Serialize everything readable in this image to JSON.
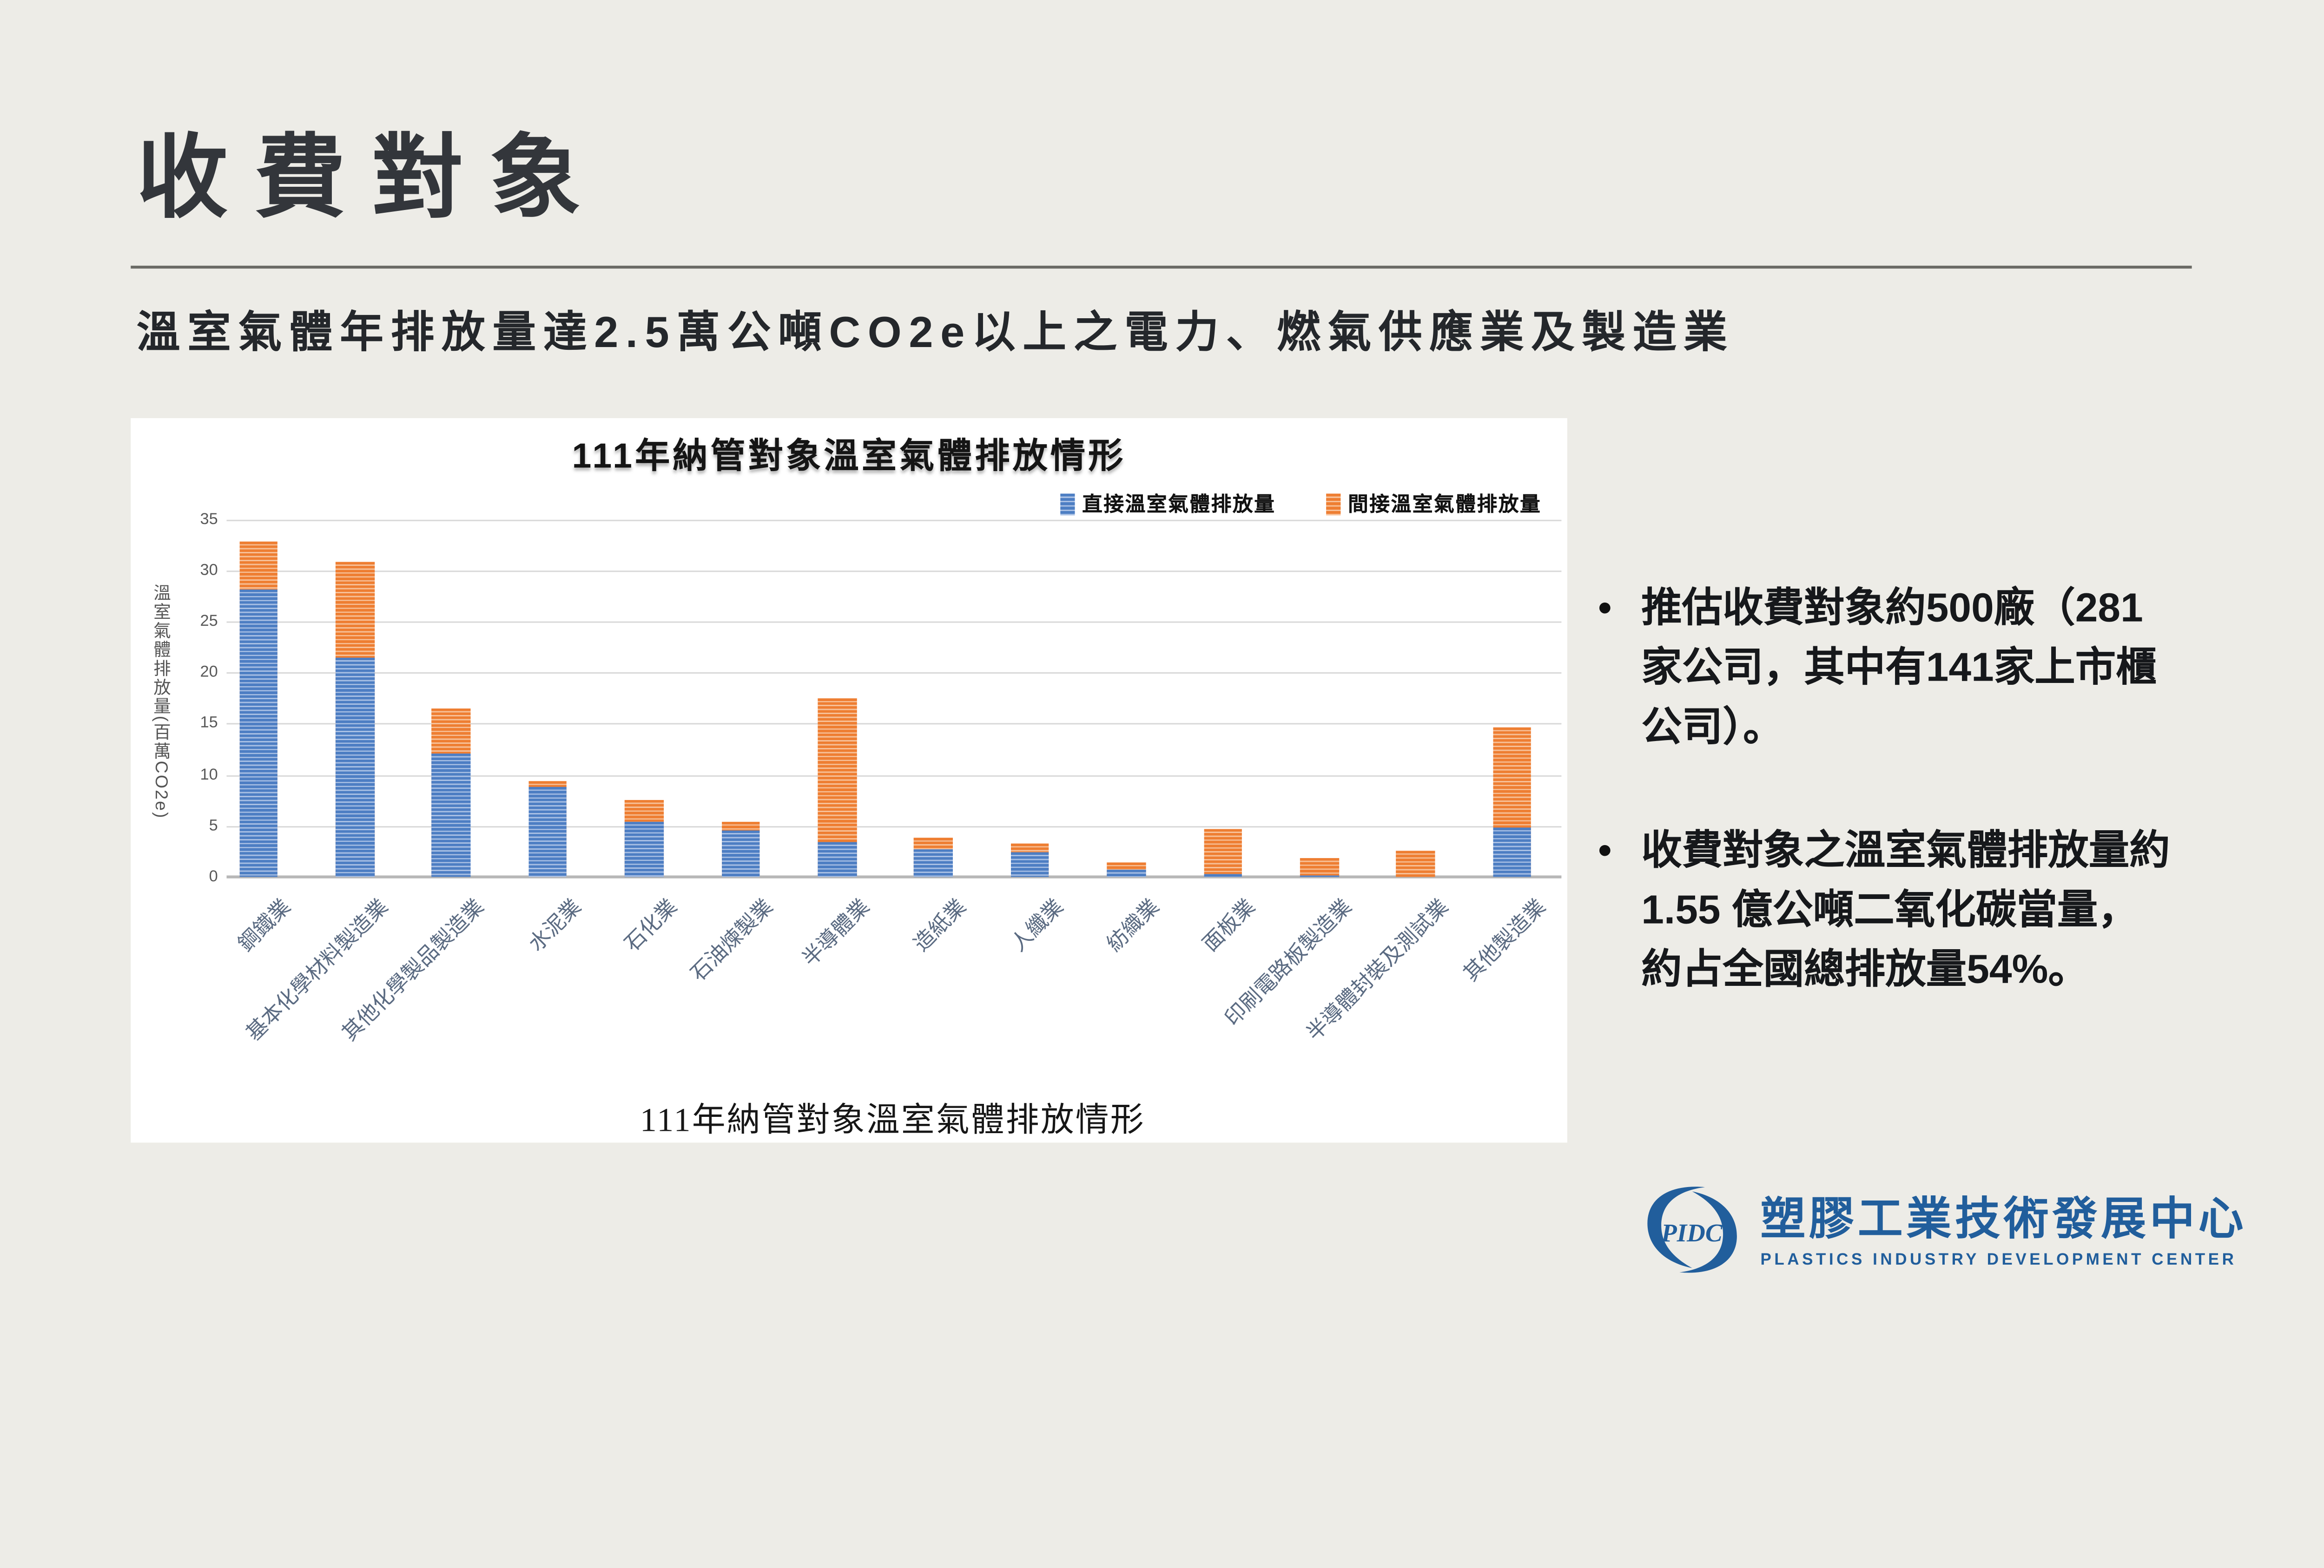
{
  "slide": {
    "title": "收費對象",
    "subtitle": "溫室氣體年排放量達2.5萬公噸CO2e以上之電力、燃氣供應業及製造業"
  },
  "chart": {
    "caption": "111年納管對象溫室氣體排放情形",
    "y_ticks": [
      35,
      30,
      25,
      20,
      15,
      10,
      5,
      0
    ]
  },
  "chart_data": {
    "type": "bar",
    "stacked": true,
    "title": "111年納管對象溫室氣體排放情形",
    "ylabel": "溫室氣體排放量(百萬CO2e)",
    "ylim": [
      0,
      35
    ],
    "ytick_step": 5,
    "grid": true,
    "legend_position": "top-right",
    "categories": [
      "鋼鐵業",
      "基本化學材料製造業",
      "其他化學製品製造業",
      "水泥業",
      "石化業",
      "石油煉製業",
      "半導體業",
      "造紙業",
      "人纖業",
      "紡織業",
      "面板業",
      "印刷電路板製造業",
      "半導體封裝及測試業",
      "其他製造業"
    ],
    "series": [
      {
        "name": "直接溫室氣體排放量",
        "color": "#4472c4",
        "values": [
          28.3,
          21.5,
          12.2,
          8.9,
          5.5,
          4.6,
          3.4,
          2.8,
          2.5,
          0.7,
          0.3,
          0.15,
          0.1,
          4.9
        ]
      },
      {
        "name": "間接溫室氣體排放量",
        "color": "#ed7d31",
        "values": [
          4.6,
          9.5,
          4.4,
          0.6,
          2.1,
          0.9,
          14.2,
          1.1,
          0.8,
          0.75,
          4.5,
          1.75,
          2.5,
          9.8
        ]
      }
    ]
  },
  "bullets": [
    {
      "marker": "•",
      "lines": [
        "推估收費對象約500廠（281",
        "家公司，其中有141家上市櫃",
        "公司）。"
      ]
    },
    {
      "marker": "•",
      "lines": [
        "收費對象之溫室氣體排放量約",
        "1.55 億公噸二氧化碳當量，",
        "約占全國總排放量54%。"
      ]
    }
  ],
  "logo": {
    "abbr": "PIDC",
    "name_zh": "塑膠工業技術發展中心",
    "name_en": "PLASTICS INDUSTRY DEVELOPMENT CENTER"
  }
}
